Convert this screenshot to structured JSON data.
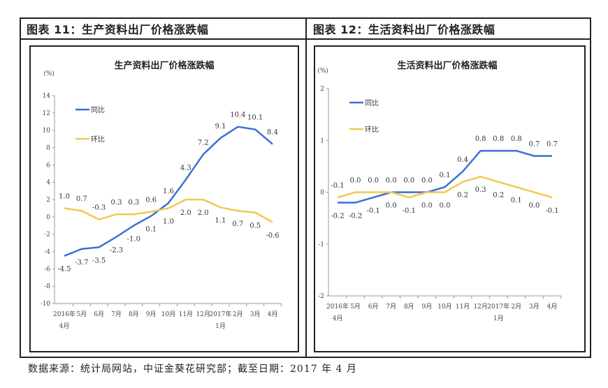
{
  "panels": [
    {
      "header": "图表 11：生产资料出厂价格涨跌幅"
    },
    {
      "header": "图表 12：生活资料出厂价格涨跌幅"
    }
  ],
  "footer": "数据来源：统计局网站，中证金葵花研究部；截至日期：2017 年 4 月",
  "colors": {
    "yoy": "#3b6fd6",
    "mom": "#f2c94c"
  },
  "chart_data": [
    {
      "type": "line",
      "title": "生产资料出厂价格涨跌幅",
      "ylabel": "(%)",
      "ylim": [
        -10,
        14
      ],
      "yticks": [
        -10,
        -8,
        -6,
        -4,
        -2,
        0,
        2,
        4,
        6,
        8,
        10,
        12,
        14
      ],
      "categories": [
        [
          "2016年",
          "4月"
        ],
        [
          "5月"
        ],
        [
          "6月"
        ],
        [
          "7月"
        ],
        [
          "8月"
        ],
        [
          "9月"
        ],
        [
          "10月"
        ],
        [
          "11月"
        ],
        [
          "12月"
        ],
        [
          "2017年",
          "1月"
        ],
        [
          "2月"
        ],
        [
          "3月"
        ],
        [
          "4月"
        ]
      ],
      "legend_placement": "top-left",
      "series": [
        {
          "name": "同比",
          "values": [
            -4.5,
            -3.7,
            -3.5,
            -2.3,
            -1.0,
            0.1,
            1.6,
            4.3,
            7.2,
            9.1,
            10.4,
            10.1,
            8.4
          ]
        },
        {
          "name": "环比",
          "values": [
            1.0,
            0.7,
            -0.3,
            0.3,
            0.3,
            0.6,
            1.0,
            2.0,
            2.0,
            1.1,
            0.7,
            0.5,
            -0.6
          ]
        }
      ]
    },
    {
      "type": "line",
      "title": "生活资料出厂价格涨跌幅",
      "ylabel": "(%)",
      "ylim": [
        -2,
        2
      ],
      "yticks": [
        -2,
        -1,
        0,
        1,
        2
      ],
      "categories": [
        [
          "2016年",
          "4月"
        ],
        [
          "5月"
        ],
        [
          "6月"
        ],
        [
          "7月"
        ],
        [
          "8月"
        ],
        [
          "9月"
        ],
        [
          "10月"
        ],
        [
          "11月"
        ],
        [
          "12月"
        ],
        [
          "2017年",
          "1月"
        ],
        [
          "2月"
        ],
        [
          "3月"
        ],
        [
          "4月"
        ]
      ],
      "legend_placement": "top-left",
      "series": [
        {
          "name": "同比",
          "values": [
            -0.2,
            -0.2,
            -0.1,
            0.0,
            0.0,
            0.0,
            0.1,
            0.4,
            0.8,
            0.8,
            0.8,
            0.7,
            0.7
          ]
        },
        {
          "name": "环比",
          "values": [
            -0.1,
            0.0,
            0.0,
            0.0,
            -0.1,
            0.0,
            0.0,
            0.2,
            0.3,
            0.2,
            0.1,
            0.0,
            -0.1
          ]
        }
      ]
    }
  ]
}
